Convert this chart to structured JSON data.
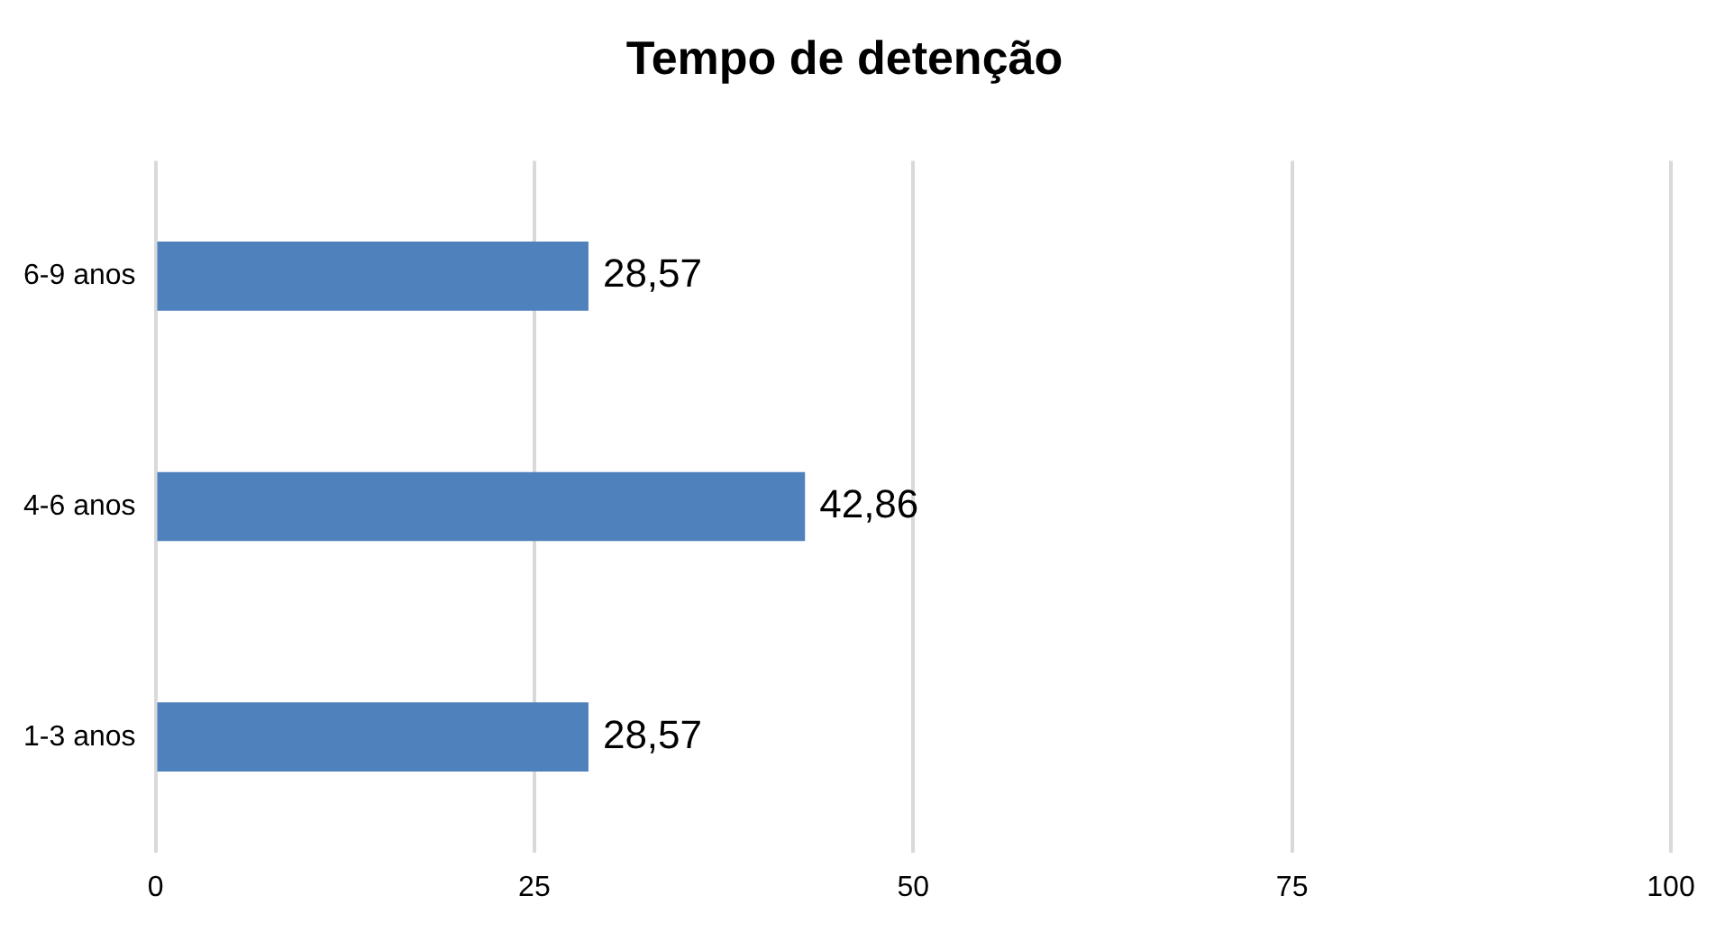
{
  "chart_data": {
    "type": "bar",
    "orientation": "horizontal",
    "title": "Tempo de detenção",
    "categories": [
      "6-9 anos",
      "4-6 anos",
      "1-3 anos"
    ],
    "values": [
      28.57,
      42.86,
      28.57
    ],
    "value_labels": [
      "28,57",
      "42,86",
      "28,57"
    ],
    "color": "#4f81bd",
    "xlim": [
      0,
      100
    ],
    "xticks": [
      0,
      25,
      50,
      75,
      100
    ],
    "grid": "x",
    "legend": false
  }
}
